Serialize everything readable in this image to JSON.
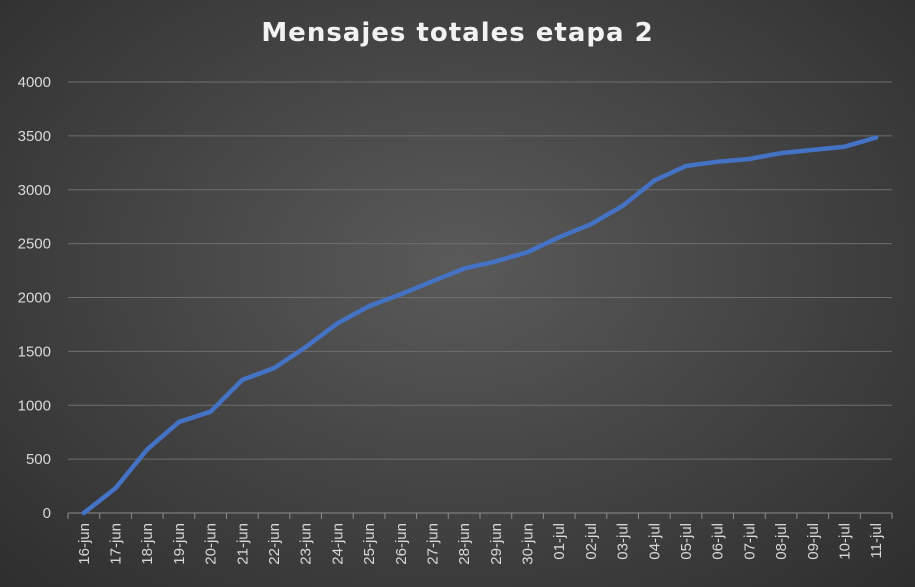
{
  "chart_data": {
    "type": "line",
    "title": "Mensajes totales etapa 2",
    "xlabel": "",
    "ylabel": "",
    "ylim": [
      0,
      4000
    ],
    "yticks": [
      "0",
      "500",
      "1000",
      "1500",
      "2000",
      "2500",
      "3000",
      "3500",
      "4000"
    ],
    "grid": true,
    "legend": "none",
    "line_color": "#4472C4",
    "categories": [
      "16-jun",
      "17-jun",
      "18-jun",
      "19-jun",
      "20-jun",
      "21-jun",
      "22-jun",
      "23-jun",
      "24-jun",
      "25-jun",
      "26-jun",
      "27-jun",
      "28-jun",
      "29-jun",
      "30-jun",
      "01-jul",
      "02-jul",
      "03-jul",
      "04-jul",
      "05-jul",
      "06-jul",
      "07-jul",
      "08-jul",
      "09-jul",
      "10-jul",
      "11-jul"
    ],
    "series": [
      {
        "values": [
          0,
          230,
          590,
          845,
          940,
          1235,
          1345,
          1540,
          1760,
          1920,
          2030,
          2150,
          2270,
          2335,
          2420,
          2560,
          2680,
          2850,
          3085,
          3220,
          3260,
          3285,
          3340,
          3370,
          3400,
          3485
        ]
      }
    ]
  }
}
